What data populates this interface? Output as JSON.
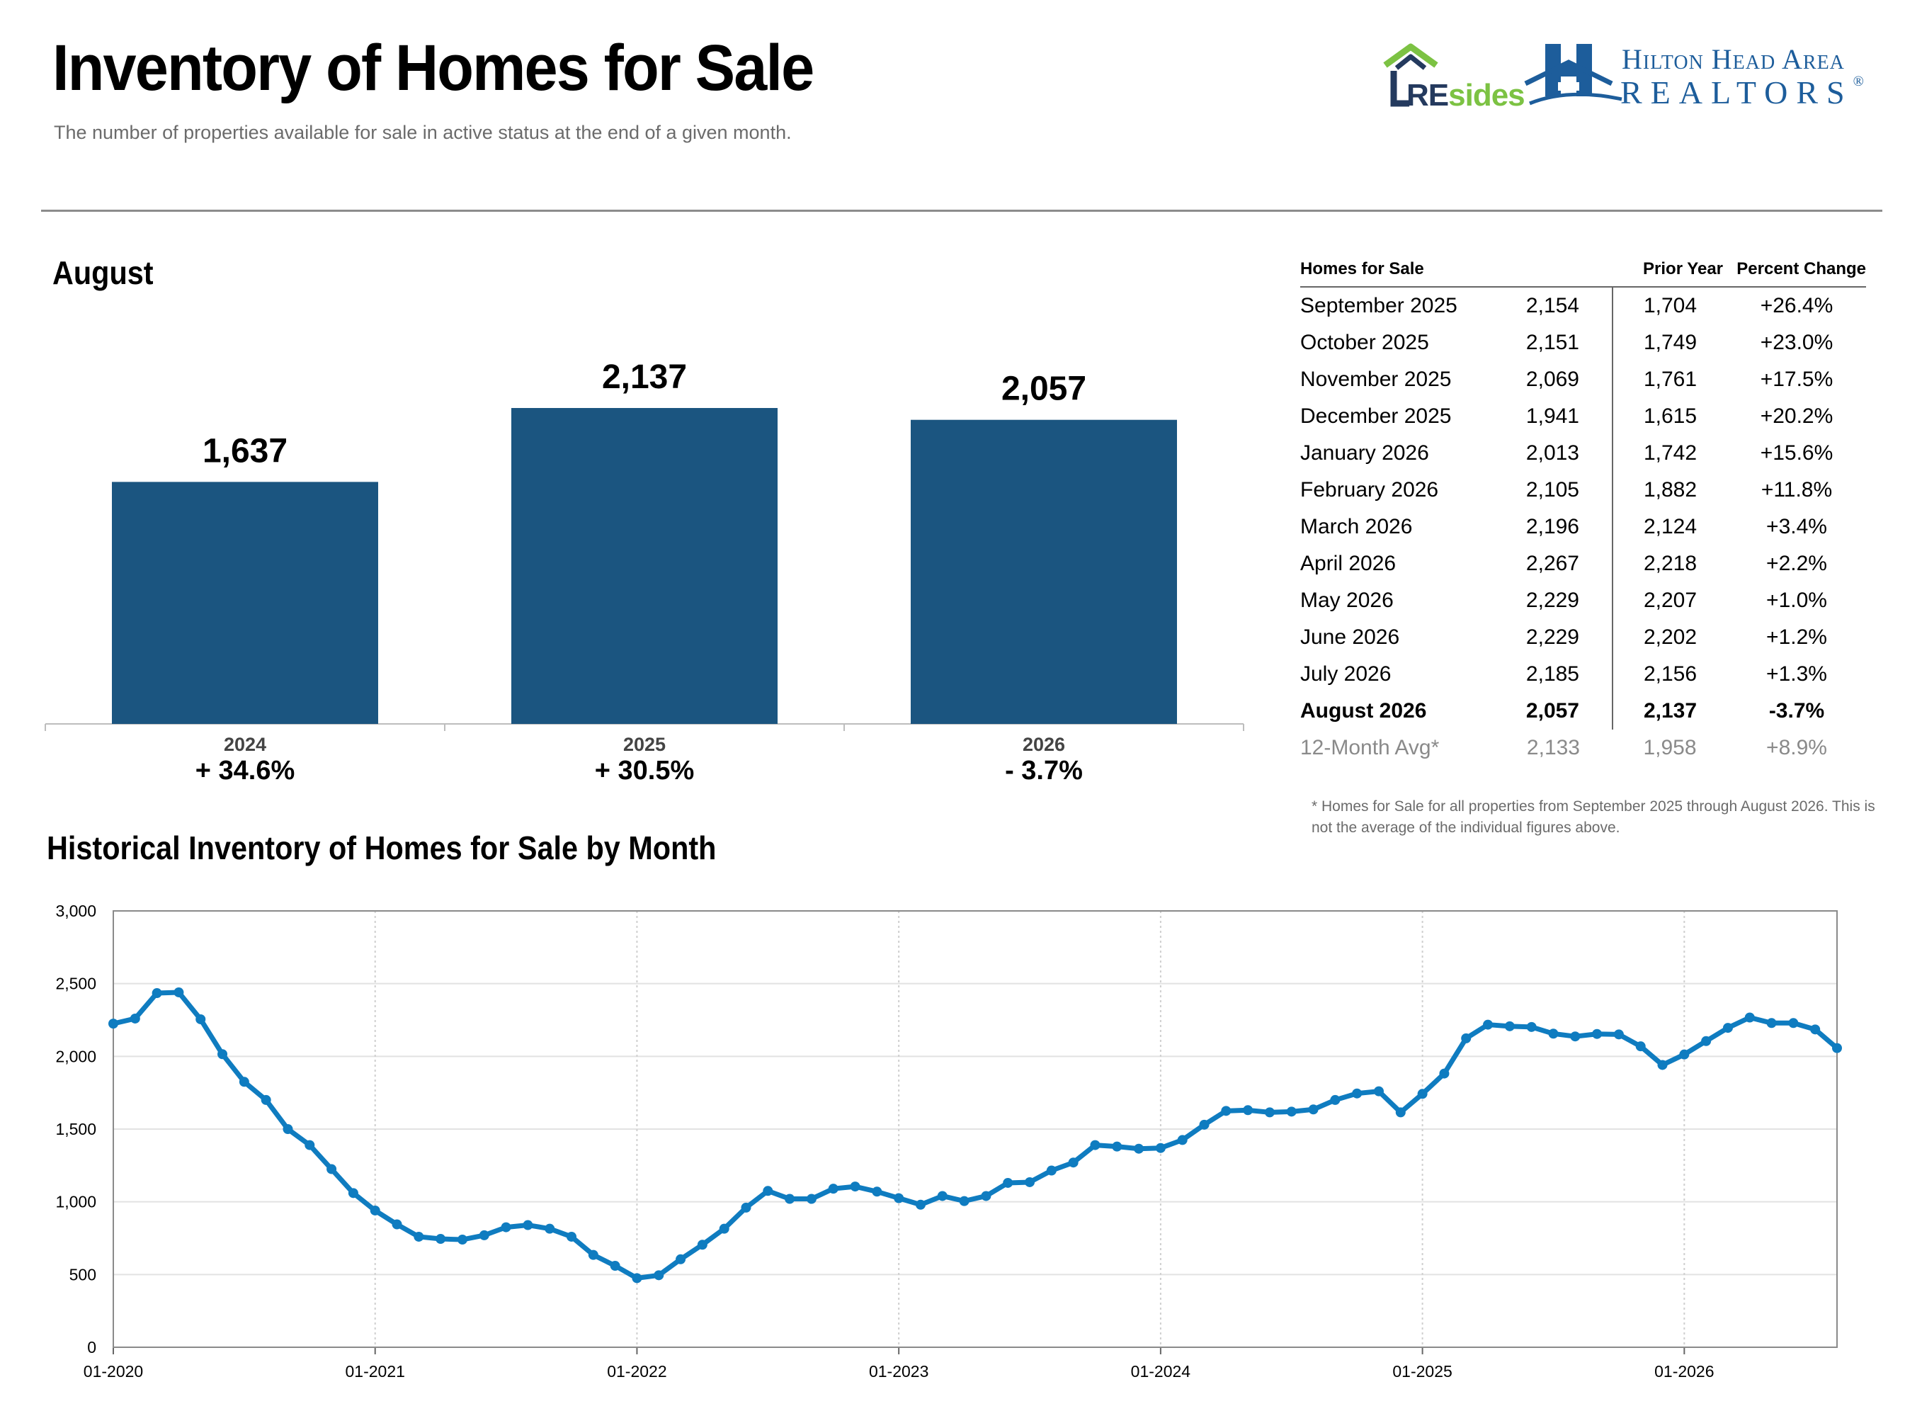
{
  "header": {
    "title": "Inventory of Homes for Sale",
    "subtitle": "The number of properties available for sale in active status at the end of a given month."
  },
  "logos": {
    "resides_re": "RE",
    "resides_sides": "sides",
    "hilton_line1": "Hilton Head Area",
    "hilton_line2": "REALTORS",
    "registered": "®",
    "colors": {
      "navy": "#243a5e",
      "green": "#7cc243",
      "blue": "#1d5d9b"
    }
  },
  "month_section": {
    "title": "August"
  },
  "history_section": {
    "title": "Historical Inventory of Homes for Sale by Month"
  },
  "table": {
    "headers": {
      "month": "Homes for Sale",
      "current": "",
      "prior": "Prior Year",
      "pct": "Percent Change"
    },
    "rows": [
      {
        "month": "September 2025",
        "current": "2,154",
        "prior": "1,704",
        "pct": "+26.4%"
      },
      {
        "month": "October 2025",
        "current": "2,151",
        "prior": "1,749",
        "pct": "+23.0%"
      },
      {
        "month": "November 2025",
        "current": "2,069",
        "prior": "1,761",
        "pct": "+17.5%"
      },
      {
        "month": "December 2025",
        "current": "1,941",
        "prior": "1,615",
        "pct": "+20.2%"
      },
      {
        "month": "January 2026",
        "current": "2,013",
        "prior": "1,742",
        "pct": "+15.6%"
      },
      {
        "month": "February 2026",
        "current": "2,105",
        "prior": "1,882",
        "pct": "+11.8%"
      },
      {
        "month": "March 2026",
        "current": "2,196",
        "prior": "2,124",
        "pct": "+3.4%"
      },
      {
        "month": "April 2026",
        "current": "2,267",
        "prior": "2,218",
        "pct": "+2.2%"
      },
      {
        "month": "May 2026",
        "current": "2,229",
        "prior": "2,207",
        "pct": "+1.0%"
      },
      {
        "month": "June 2026",
        "current": "2,229",
        "prior": "2,202",
        "pct": "+1.2%"
      },
      {
        "month": "July 2026",
        "current": "2,185",
        "prior": "2,156",
        "pct": "+1.3%"
      },
      {
        "month": "August 2026",
        "current": "2,057",
        "prior": "2,137",
        "pct": "-3.7%",
        "bold": true
      }
    ],
    "avg": {
      "month": "12-Month Avg*",
      "current": "2,133",
      "prior": "1,958",
      "pct": "+8.9%"
    },
    "footnote": "* Homes for Sale for all properties from September 2025 through August 2026. This is not the average of the individual figures above."
  },
  "chart_data": [
    {
      "type": "bar",
      "title": "August",
      "categories": [
        "2024",
        "2025",
        "2026"
      ],
      "values": [
        1637,
        2137,
        2057
      ],
      "value_labels": [
        "1,637",
        "2,137",
        "2,057"
      ],
      "changes": [
        "+ 34.6%",
        "+ 30.5%",
        "- 3.7%"
      ],
      "color": "#1b5580",
      "ylim": [
        0,
        2300
      ]
    },
    {
      "type": "line",
      "title": "Historical Inventory of Homes for Sale by Month",
      "x_start": "01-2020",
      "x_ticks": [
        "01-2020",
        "01-2021",
        "01-2022",
        "01-2023",
        "01-2024",
        "01-2025",
        "01-2026"
      ],
      "y_ticks": [
        "0",
        "500",
        "1,000",
        "1,500",
        "2,000",
        "2,500",
        "3,000"
      ],
      "ylim": [
        0,
        3000
      ],
      "color": "#0f7cc0",
      "grid": true,
      "series": [
        {
          "values": [
            2225,
            2260,
            2435,
            2440,
            2255,
            2015,
            1825,
            1700,
            1500,
            1390,
            1225,
            1060,
            940,
            845,
            760,
            745,
            740,
            770,
            825,
            840,
            815,
            760,
            635,
            560,
            475,
            495,
            605,
            705,
            815,
            960,
            1075,
            1020,
            1020,
            1090,
            1105,
            1070,
            1025,
            980,
            1040,
            1005,
            1040,
            1130,
            1135,
            1215,
            1270,
            1390,
            1380,
            1365,
            1370,
            1425,
            1530,
            1625,
            1630,
            1615,
            1620,
            1635,
            1700,
            1745,
            1760,
            1615,
            1742,
            1882,
            2124,
            2218,
            2207,
            2202,
            2156,
            2137,
            2154,
            2151,
            2069,
            1941,
            2013,
            2105,
            2196,
            2267,
            2229,
            2229,
            2185,
            2057
          ]
        }
      ]
    }
  ]
}
